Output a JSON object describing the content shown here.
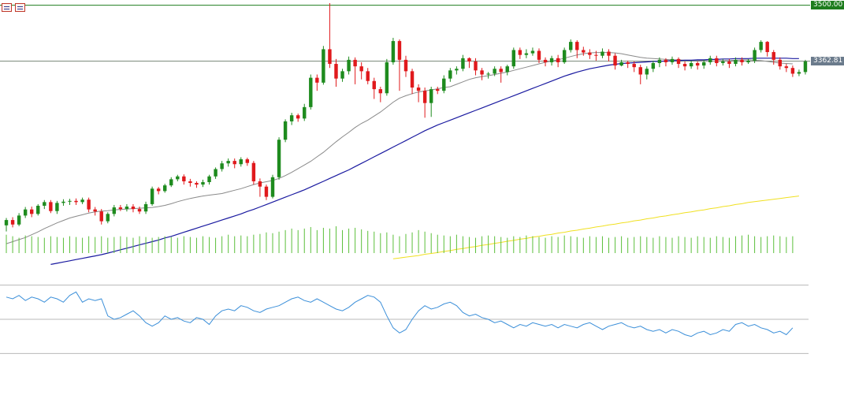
{
  "toolbar": {
    "icons": [
      "chart-list-icon",
      "chart-settings-icon"
    ]
  },
  "price_labels": {
    "resistance": "3500.00",
    "current": "3362.81"
  },
  "colors": {
    "bull": "#1e8b1e",
    "bear": "#e0191c",
    "ma_slow": "#1a1aa0",
    "ma_fast": "#8a8a8a",
    "ma_long": "#f0e020",
    "volume": "#5bbf3a",
    "rsi": "#3b8fd9",
    "level_line": "#1e7d1e",
    "current_line": "#7d8c7d"
  },
  "chart_data": {
    "type": "candlestick",
    "resistance_level": 3500.0,
    "current_price": 3362.81,
    "price_range": [
      2890,
      3505
    ],
    "rsi_levels": [
      70,
      50,
      30
    ],
    "rsi_range": [
      20,
      80
    ],
    "candles": [
      [
        2960,
        2973,
        2945,
        2978
      ],
      [
        2973,
        2962,
        2955,
        2980
      ],
      [
        2962,
        2984,
        2958,
        2990
      ],
      [
        2984,
        2999,
        2978,
        3005
      ],
      [
        2999,
        2988,
        2980,
        3006
      ],
      [
        2988,
        3008,
        2984,
        3012
      ],
      [
        3008,
        3017,
        3000,
        3022
      ],
      [
        3017,
        2995,
        2990,
        3022
      ],
      [
        2995,
        3015,
        2988,
        3020
      ],
      [
        3015,
        3018,
        3008,
        3024
      ],
      [
        3018,
        3020,
        3010,
        3025
      ],
      [
        3020,
        3017,
        3010,
        3026
      ],
      [
        3017,
        3023,
        3012,
        3028
      ],
      [
        3023,
        2999,
        2992,
        3028
      ],
      [
        2999,
        2994,
        2984,
        3005
      ],
      [
        2994,
        2970,
        2962,
        3000
      ],
      [
        2970,
        2988,
        2965,
        2992
      ],
      [
        2988,
        3004,
        2982,
        3010
      ],
      [
        3004,
        3000,
        2995,
        3010
      ],
      [
        3000,
        3006,
        2994,
        3012
      ],
      [
        3006,
        3000,
        2992,
        3012
      ],
      [
        3000,
        2994,
        2988,
        3006
      ],
      [
        2994,
        3012,
        2988,
        3018
      ],
      [
        3012,
        3050,
        3008,
        3055
      ],
      [
        3050,
        3044,
        3036,
        3054
      ],
      [
        3044,
        3058,
        3040,
        3062
      ],
      [
        3058,
        3073,
        3054,
        3078
      ],
      [
        3073,
        3080,
        3068,
        3084
      ],
      [
        3080,
        3068,
        3060,
        3085
      ],
      [
        3068,
        3064,
        3055,
        3074
      ],
      [
        3064,
        3060,
        3052,
        3068
      ],
      [
        3060,
        3066,
        3054,
        3072
      ],
      [
        3066,
        3080,
        3060,
        3084
      ],
      [
        3080,
        3098,
        3074,
        3102
      ],
      [
        3098,
        3112,
        3092,
        3118
      ],
      [
        3112,
        3118,
        3104,
        3124
      ],
      [
        3118,
        3110,
        3100,
        3124
      ],
      [
        3110,
        3122,
        3104,
        3127
      ],
      [
        3122,
        3113,
        3106,
        3126
      ],
      [
        3113,
        3068,
        3060,
        3118
      ],
      [
        3068,
        3055,
        3030,
        3075
      ],
      [
        3055,
        3030,
        3022,
        3060
      ],
      [
        3030,
        3078,
        3026,
        3084
      ],
      [
        3078,
        3170,
        3072,
        3176
      ],
      [
        3170,
        3215,
        3164,
        3220
      ],
      [
        3215,
        3230,
        3206,
        3236
      ],
      [
        3230,
        3222,
        3214,
        3234
      ],
      [
        3222,
        3250,
        3216,
        3258
      ],
      [
        3250,
        3322,
        3244,
        3330
      ],
      [
        3322,
        3310,
        3290,
        3330
      ],
      [
        3310,
        3392,
        3305,
        3400
      ],
      [
        3392,
        3356,
        3346,
        3505
      ],
      [
        3356,
        3320,
        3300,
        3368
      ],
      [
        3320,
        3338,
        3312,
        3344
      ],
      [
        3338,
        3366,
        3330,
        3374
      ],
      [
        3366,
        3350,
        3306,
        3372
      ],
      [
        3350,
        3338,
        3318,
        3360
      ],
      [
        3338,
        3314,
        3306,
        3346
      ],
      [
        3314,
        3294,
        3270,
        3322
      ],
      [
        3294,
        3284,
        3262,
        3300
      ],
      [
        3284,
        3360,
        3278,
        3368
      ],
      [
        3360,
        3412,
        3354,
        3420
      ],
      [
        3412,
        3366,
        3290,
        3416
      ],
      [
        3366,
        3338,
        3324,
        3376
      ],
      [
        3338,
        3298,
        3282,
        3344
      ],
      [
        3298,
        3290,
        3262,
        3306
      ],
      [
        3290,
        3260,
        3224,
        3298
      ],
      [
        3260,
        3294,
        3226,
        3300
      ],
      [
        3294,
        3290,
        3282,
        3300
      ],
      [
        3290,
        3320,
        3284,
        3328
      ],
      [
        3320,
        3340,
        3312,
        3346
      ],
      [
        3340,
        3344,
        3330,
        3350
      ],
      [
        3344,
        3370,
        3338,
        3378
      ],
      [
        3370,
        3362,
        3346,
        3372
      ],
      [
        3362,
        3340,
        3328,
        3370
      ],
      [
        3340,
        3330,
        3316,
        3346
      ],
      [
        3330,
        3332,
        3320,
        3336
      ],
      [
        3332,
        3344,
        3326,
        3350
      ],
      [
        3344,
        3336,
        3310,
        3350
      ],
      [
        3336,
        3350,
        3328,
        3354
      ],
      [
        3350,
        3390,
        3344,
        3396
      ],
      [
        3390,
        3378,
        3368,
        3396
      ],
      [
        3378,
        3382,
        3370,
        3392
      ],
      [
        3382,
        3388,
        3376,
        3396
      ],
      [
        3388,
        3366,
        3358,
        3394
      ],
      [
        3366,
        3360,
        3350,
        3372
      ],
      [
        3360,
        3370,
        3352,
        3376
      ],
      [
        3370,
        3360,
        3348,
        3378
      ],
      [
        3360,
        3390,
        3356,
        3396
      ],
      [
        3390,
        3410,
        3384,
        3416
      ],
      [
        3410,
        3390,
        3370,
        3414
      ],
      [
        3390,
        3384,
        3376,
        3398
      ],
      [
        3384,
        3378,
        3368,
        3392
      ],
      [
        3378,
        3376,
        3364,
        3388
      ],
      [
        3376,
        3386,
        3370,
        3394
      ],
      [
        3386,
        3376,
        3362,
        3392
      ],
      [
        3376,
        3352,
        3342,
        3382
      ],
      [
        3352,
        3360,
        3350,
        3366
      ],
      [
        3360,
        3356,
        3346,
        3364
      ],
      [
        3356,
        3348,
        3336,
        3362
      ],
      [
        3348,
        3330,
        3306,
        3354
      ],
      [
        3330,
        3344,
        3318,
        3350
      ],
      [
        3344,
        3358,
        3336,
        3364
      ],
      [
        3358,
        3366,
        3348,
        3372
      ],
      [
        3366,
        3360,
        3350,
        3370
      ],
      [
        3360,
        3368,
        3354,
        3374
      ],
      [
        3368,
        3356,
        3346,
        3372
      ],
      [
        3356,
        3350,
        3340,
        3362
      ],
      [
        3350,
        3358,
        3344,
        3364
      ],
      [
        3358,
        3352,
        3342,
        3362
      ],
      [
        3352,
        3360,
        3344,
        3366
      ],
      [
        3360,
        3370,
        3354,
        3376
      ],
      [
        3370,
        3358,
        3350,
        3376
      ],
      [
        3358,
        3362,
        3352,
        3368
      ],
      [
        3362,
        3356,
        3346,
        3368
      ],
      [
        3356,
        3366,
        3350,
        3372
      ],
      [
        3366,
        3360,
        3352,
        3372
      ],
      [
        3360,
        3364,
        3356,
        3368
      ],
      [
        3364,
        3390,
        3358,
        3396
      ],
      [
        3390,
        3410,
        3384,
        3414
      ],
      [
        3410,
        3385,
        3374,
        3412
      ],
      [
        3385,
        3366,
        3354,
        3390
      ],
      [
        3366,
        3350,
        3342,
        3372
      ],
      [
        3350,
        3346,
        3336,
        3356
      ],
      [
        3346,
        3332,
        3324,
        3352
      ],
      [
        3332,
        3336,
        3326,
        3342
      ],
      [
        3336,
        3362,
        3330,
        3366
      ]
    ],
    "ma_fast": [
      2915,
      2920,
      2925,
      2930,
      2937,
      2944,
      2952,
      2959,
      2966,
      2972,
      2978,
      2982,
      2986,
      2990,
      2993,
      2995,
      2996,
      2998,
      2999,
      3000,
      3001,
      3002,
      3003,
      3004,
      3006,
      3009,
      3013,
      3018,
      3022,
      3026,
      3029,
      3032,
      3034,
      3036,
      3038,
      3042,
      3046,
      3050,
      3055,
      3060,
      3064,
      3067,
      3070,
      3075,
      3082,
      3090,
      3099,
      3108,
      3117,
      3128,
      3139,
      3152,
      3165,
      3177,
      3188,
      3200,
      3210,
      3218,
      3228,
      3238,
      3250,
      3262,
      3272,
      3278,
      3283,
      3287,
      3290,
      3292,
      3295,
      3298,
      3300,
      3306,
      3312,
      3318,
      3322,
      3325,
      3327,
      3330,
      3333,
      3336,
      3340,
      3344,
      3348,
      3352,
      3356,
      3360,
      3363,
      3366,
      3370,
      3374,
      3378,
      3381,
      3383,
      3384,
      3384,
      3384,
      3383,
      3381,
      3378,
      3375,
      3372,
      3370,
      3369,
      3368,
      3367,
      3366,
      3366,
      3365,
      3365,
      3364,
      3364,
      3363,
      3363,
      3364,
      3364,
      3365,
      3366,
      3366,
      3365,
      3364,
      3362,
      3360,
      3358,
      3357,
      3356
    ],
    "ma_slow_start_index": 7,
    "ma_slow": [
      2864,
      2867,
      2870,
      2873,
      2876,
      2879,
      2882,
      2885,
      2888,
      2892,
      2896,
      2900,
      2904,
      2908,
      2912,
      2916,
      2920,
      2924,
      2929,
      2933,
      2938,
      2943,
      2948,
      2953,
      2958,
      2963,
      2968,
      2973,
      2978,
      2983,
      2988,
      2994,
      2999,
      3005,
      3011,
      3017,
      3023,
      3029,
      3035,
      3041,
      3047,
      3054,
      3061,
      3068,
      3075,
      3082,
      3089,
      3096,
      3104,
      3112,
      3120,
      3128,
      3136,
      3144,
      3152,
      3160,
      3168,
      3176,
      3184,
      3192,
      3199,
      3206,
      3212,
      3218,
      3224,
      3230,
      3236,
      3242,
      3248,
      3254,
      3260,
      3266,
      3272,
      3278,
      3284,
      3290,
      3296,
      3302,
      3308,
      3314,
      3320,
      3326,
      3331,
      3336,
      3340,
      3344,
      3347,
      3350,
      3353,
      3355,
      3357,
      3358,
      3359,
      3360,
      3361,
      3362,
      3362,
      3363,
      3364,
      3364,
      3365,
      3365,
      3366,
      3366,
      3367,
      3367,
      3368,
      3368,
      3369,
      3369,
      3369,
      3370,
      3370,
      3370,
      3370,
      3370,
      3370,
      3369,
      3369
    ],
    "ma_long_start_index": 61,
    "ma_long": [
      2878,
      2880,
      2882,
      2884,
      2886,
      2889,
      2891,
      2893,
      2896,
      2898,
      2901,
      2903,
      2906,
      2908,
      2911,
      2913,
      2916,
      2918,
      2921,
      2923,
      2926,
      2928,
      2931,
      2933,
      2936,
      2938,
      2941,
      2943,
      2946,
      2948,
      2951,
      2953,
      2956,
      2958,
      2961,
      2963,
      2966,
      2968,
      2971,
      2973,
      2976,
      2978,
      2981,
      2983,
      2986,
      2988,
      2991,
      2993,
      2996,
      2998,
      3001,
      3003,
      3006,
      3008,
      3011,
      3013,
      3016,
      3018,
      3020,
      3022,
      3024,
      3026,
      3028,
      3030,
      3032
    ],
    "volume": [
      24,
      22,
      20,
      23,
      22,
      21,
      20,
      22,
      21,
      20,
      22,
      21,
      20,
      22,
      21,
      22,
      20,
      21,
      22,
      21,
      20,
      22,
      21,
      20,
      21,
      22,
      21,
      20,
      22,
      21,
      20,
      22,
      21,
      20,
      22,
      24,
      22,
      23,
      22,
      24,
      25,
      27,
      26,
      28,
      30,
      32,
      30,
      32,
      34,
      30,
      33,
      32,
      35,
      30,
      32,
      33,
      31,
      29,
      28,
      26,
      27,
      24,
      22,
      25,
      27,
      30,
      28,
      26,
      24,
      23,
      22,
      24,
      22,
      21,
      20,
      22,
      23,
      22,
      21,
      20,
      22,
      21,
      23,
      22,
      21,
      20,
      22,
      21,
      23,
      22,
      21,
      20,
      22,
      21,
      22,
      20,
      21,
      22,
      20,
      21,
      22,
      21,
      20,
      22,
      21,
      20,
      22,
      21,
      20,
      22,
      21,
      20,
      22,
      21,
      20,
      22,
      23,
      24,
      22,
      21,
      22,
      23,
      22,
      21,
      22
    ],
    "rsi": [
      63,
      62,
      64,
      61,
      63,
      62,
      60,
      63,
      62,
      60,
      64,
      66,
      60,
      62,
      61,
      62,
      52,
      50,
      51,
      53,
      55,
      52,
      48,
      46,
      48,
      52,
      50,
      51,
      49,
      48,
      51,
      50,
      47,
      52,
      55,
      56,
      55,
      58,
      57,
      55,
      54,
      56,
      57,
      58,
      60,
      62,
      63,
      61,
      60,
      62,
      60,
      58,
      56,
      55,
      57,
      60,
      62,
      64,
      63,
      60,
      52,
      45,
      42,
      44,
      50,
      55,
      58,
      56,
      57,
      59,
      60,
      58,
      54,
      52,
      53,
      51,
      50,
      48,
      49,
      47,
      45,
      47,
      46,
      48,
      47,
      46,
      47,
      45,
      47,
      46,
      45,
      47,
      48,
      46,
      44,
      46,
      47,
      48,
      46,
      45,
      46,
      44,
      43,
      44,
      42,
      44,
      43,
      41,
      40,
      42,
      43,
      41,
      42,
      44,
      43,
      47,
      48,
      46,
      47,
      45,
      44,
      42,
      43,
      41,
      45
    ]
  }
}
